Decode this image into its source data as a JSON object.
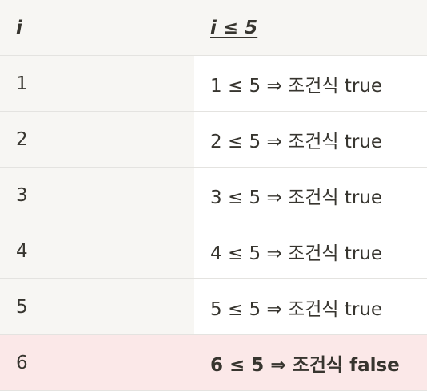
{
  "table": {
    "headers": {
      "col_i": "i",
      "col_condition": "i  ≤ 5"
    },
    "rows": [
      {
        "i": "1",
        "condition": "1 ≤ 5 ⇒ 조건식 true"
      },
      {
        "i": "2",
        "condition": "2 ≤ 5 ⇒ 조건식 true"
      },
      {
        "i": "3",
        "condition": "3 ≤ 5 ⇒ 조건식 true"
      },
      {
        "i": "4",
        "condition": "4 ≤ 5 ⇒ 조건식 true"
      },
      {
        "i": "5",
        "condition": "5 ≤ 5 ⇒ 조건식 true"
      },
      {
        "i": "6",
        "condition": "6 ≤ 5 ⇒ 조건식 false"
      }
    ]
  },
  "colors": {
    "header_bg": "#f7f6f3",
    "first_col_bg": "#f7f6f3",
    "false_row_bg": "#fbe8e8",
    "border": "#e4e3e0",
    "text": "#37352f"
  }
}
